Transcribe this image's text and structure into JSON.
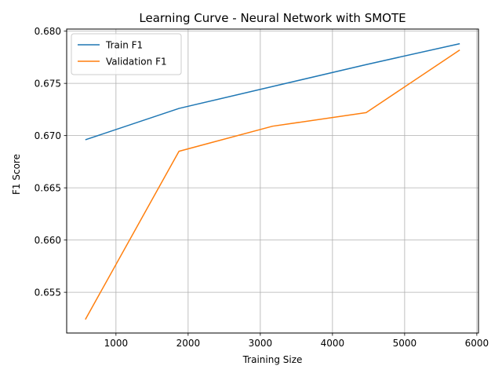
{
  "chart_data": {
    "type": "line",
    "title": "Learning Curve - Neural Network with SMOTE",
    "xlabel": "Training Size",
    "ylabel": "F1 Score",
    "x": [
      576,
      1873,
      3170,
      4467,
      5764
    ],
    "series": [
      {
        "name": "Train F1",
        "values": [
          0.6696,
          0.6726,
          0.6747,
          0.6768,
          0.6788
        ],
        "color": "#1f77b4"
      },
      {
        "name": "Validation F1",
        "values": [
          0.6524,
          0.6685,
          0.6709,
          0.6722,
          0.6782
        ],
        "color": "#ff7f0e"
      }
    ],
    "xlim": [
      317,
      6023
    ],
    "ylim": [
      0.6511,
      0.6802
    ],
    "xticks": [
      1000,
      2000,
      3000,
      4000,
      5000,
      6000
    ],
    "xtick_labels": [
      "1000",
      "2000",
      "3000",
      "4000",
      "5000",
      "6000"
    ],
    "yticks": [
      0.655,
      0.66,
      0.665,
      0.67,
      0.675,
      0.68
    ],
    "ytick_labels": [
      "0.655",
      "0.660",
      "0.665",
      "0.670",
      "0.675",
      "0.680"
    ],
    "grid": true,
    "legend_position": "upper-left"
  }
}
